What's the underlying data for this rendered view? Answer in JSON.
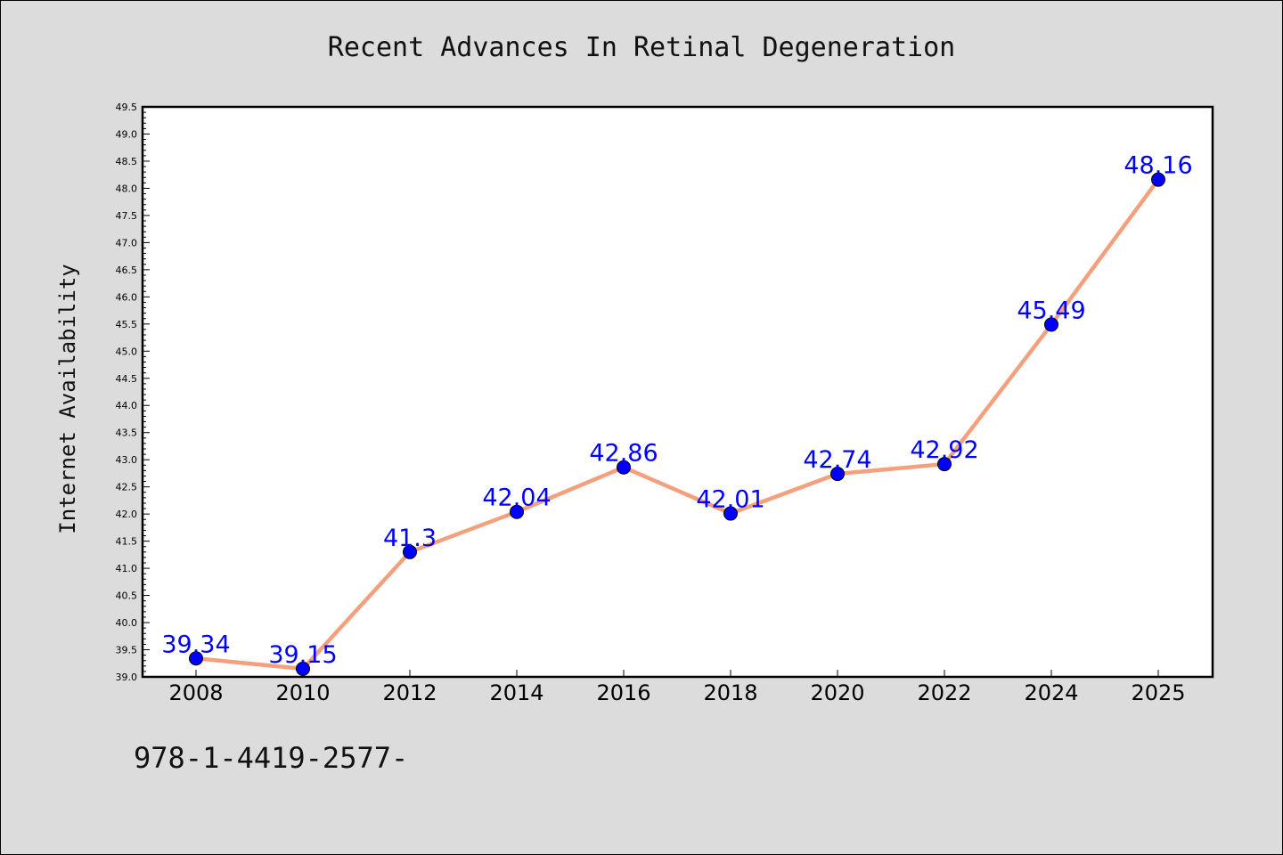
{
  "chart_data": {
    "type": "line",
    "title": "Recent Advances In Retinal Degeneration",
    "xlabel": "",
    "ylabel": "Internet Availability",
    "categories": [
      "2008",
      "2010",
      "2012",
      "2014",
      "2016",
      "2018",
      "2020",
      "2022",
      "2024",
      "2025"
    ],
    "series": [
      {
        "values": [
          39.34,
          39.15,
          41.3,
          42.04,
          42.86,
          42.01,
          42.74,
          42.92,
          45.49,
          48.16
        ],
        "color": "#f4a07c",
        "marker_color": "#0000ff"
      }
    ],
    "data_labels": [
      "39.34",
      "39.15",
      "41.3",
      "42.04",
      "42.86",
      "42.01",
      "42.74",
      "42.92",
      "45.49",
      "48.16"
    ],
    "ylim": [
      39.0,
      49.5
    ],
    "ytick_step": 0.5,
    "ytick_labels": [
      "39.0",
      "39.5",
      "40.0",
      "40.5",
      "41.0",
      "41.5",
      "42.0",
      "42.5",
      "43.0",
      "43.5",
      "44.0",
      "44.5",
      "45.0",
      "45.5",
      "46.0",
      "46.5",
      "47.0",
      "47.5",
      "48.0",
      "48.5",
      "49.0",
      "49.5"
    ],
    "grid": false,
    "legend": "none"
  },
  "footer_text": "978-1-4419-2577-"
}
